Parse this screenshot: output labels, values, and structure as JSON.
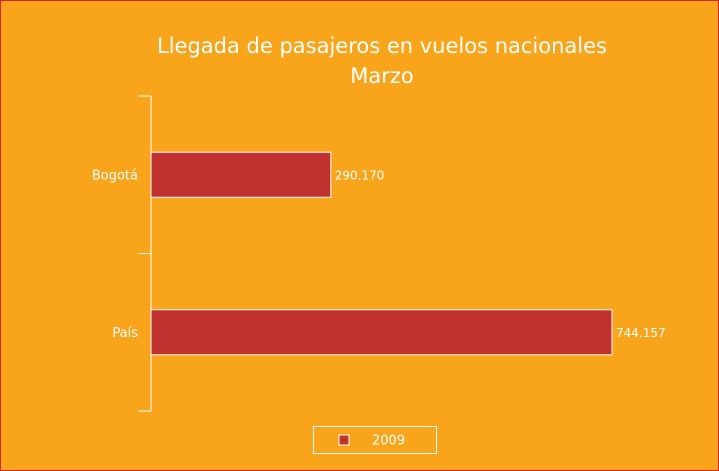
{
  "chart_data": {
    "type": "bar",
    "orientation": "horizontal",
    "title": "Llegada de pasajeros en vuelos nacionales",
    "subtitle": "Marzo",
    "categories": [
      "Bogotá",
      "País"
    ],
    "series": [
      {
        "name": "2009",
        "color": "#c0312f",
        "values": [
          290170,
          744157
        ],
        "value_labels": [
          "290.170",
          "744.157"
        ]
      }
    ],
    "legend": "bottom"
  }
}
